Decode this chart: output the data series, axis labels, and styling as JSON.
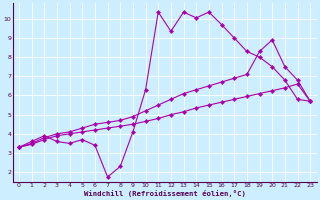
{
  "xlabel": "Windchill (Refroidissement éolien,°C)",
  "bg_color": "#cceeff",
  "line_color": "#aa00aa",
  "grid_color": "#ffffff",
  "xlim": [
    -0.5,
    23.5
  ],
  "ylim": [
    1.5,
    10.8
  ],
  "x_ticks": [
    0,
    1,
    2,
    3,
    4,
    5,
    6,
    7,
    8,
    9,
    10,
    11,
    12,
    13,
    14,
    15,
    16,
    17,
    18,
    19,
    20,
    21,
    22,
    23
  ],
  "y_ticks": [
    2,
    3,
    4,
    5,
    6,
    7,
    8,
    9,
    10
  ],
  "series1_x": [
    0,
    1,
    2,
    3,
    4,
    5,
    6,
    7,
    8,
    9,
    10,
    11,
    12,
    13,
    14,
    15,
    16,
    17,
    18,
    19,
    20,
    21,
    22,
    23
  ],
  "series1_y": [
    3.3,
    3.6,
    3.9,
    3.6,
    3.5,
    3.7,
    3.4,
    1.75,
    2.3,
    4.1,
    6.3,
    10.35,
    9.35,
    10.35,
    10.05,
    10.35,
    9.7,
    9.0,
    8.3,
    8.0,
    7.5,
    6.8,
    5.8,
    5.7
  ],
  "series2_x": [
    0,
    1,
    2,
    3,
    4,
    5,
    6,
    7,
    8,
    9,
    10,
    11,
    12,
    13,
    14,
    15,
    16,
    17,
    18,
    19,
    20,
    21,
    22,
    23
  ],
  "series2_y": [
    3.3,
    3.45,
    3.7,
    3.9,
    4.0,
    4.1,
    4.2,
    4.3,
    4.4,
    4.5,
    4.65,
    4.8,
    5.0,
    5.15,
    5.35,
    5.5,
    5.65,
    5.8,
    5.95,
    6.1,
    6.25,
    6.4,
    6.6,
    5.7
  ],
  "series3_x": [
    0,
    1,
    2,
    3,
    4,
    5,
    6,
    7,
    8,
    9,
    10,
    11,
    12,
    13,
    14,
    15,
    16,
    17,
    18,
    19,
    20,
    21,
    22,
    23
  ],
  "series3_y": [
    3.3,
    3.5,
    3.8,
    4.0,
    4.1,
    4.3,
    4.5,
    4.6,
    4.7,
    4.9,
    5.2,
    5.5,
    5.8,
    6.1,
    6.3,
    6.5,
    6.7,
    6.9,
    7.1,
    8.3,
    8.9,
    7.5,
    6.8,
    5.7
  ],
  "marker": "D",
  "marker_size": 2.2,
  "linewidth": 0.8
}
